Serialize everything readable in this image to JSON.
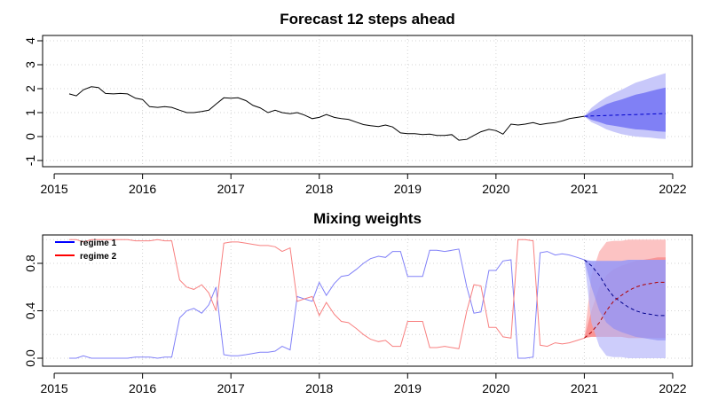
{
  "chart_data": [
    {
      "type": "line",
      "title": "Forecast 12 steps ahead",
      "xlabel": "",
      "ylabel": "",
      "xlim": [
        2015,
        2022
      ],
      "ylim": [
        -1,
        4
      ],
      "xticks": [
        "2015",
        "2016",
        "2017",
        "2018",
        "2019",
        "2020",
        "2021",
        "2022"
      ],
      "yticks": [
        "-1",
        "0",
        "1",
        "2",
        "3",
        "4"
      ],
      "grid": true,
      "colors": {
        "observed": "#000000",
        "forecast": "#0000cc",
        "inner_band": "#8080f5",
        "outer_band": "#c8c8fa"
      },
      "series": [
        {
          "kind": "observed",
          "x": [
            2015.17,
            2015.25,
            2015.33,
            2015.42,
            2015.5,
            2015.58,
            2015.67,
            2015.75,
            2015.83,
            2015.92,
            2016.0,
            2016.08,
            2016.17,
            2016.25,
            2016.33,
            2016.42,
            2016.5,
            2016.58,
            2016.67,
            2016.75,
            2016.83,
            2016.92,
            2017.0,
            2017.08,
            2017.17,
            2017.25,
            2017.33,
            2017.42,
            2017.5,
            2017.58,
            2017.67,
            2017.75,
            2017.83,
            2017.92,
            2018.0,
            2018.08,
            2018.17,
            2018.25,
            2018.33,
            2018.42,
            2018.5,
            2018.58,
            2018.67,
            2018.75,
            2018.83,
            2018.92,
            2019.0,
            2019.08,
            2019.17,
            2019.25,
            2019.33,
            2019.42,
            2019.5,
            2019.58,
            2019.67,
            2019.75,
            2019.83,
            2019.92,
            2020.0,
            2020.08,
            2020.17,
            2020.25,
            2020.33,
            2020.42,
            2020.5,
            2020.58,
            2020.67,
            2020.75,
            2020.83,
            2020.92,
            2021.0
          ],
          "values": [
            1.78,
            1.7,
            1.95,
            2.08,
            2.05,
            1.8,
            1.78,
            1.8,
            1.78,
            1.6,
            1.55,
            1.25,
            1.22,
            1.25,
            1.22,
            1.1,
            1.0,
            1.0,
            1.05,
            1.1,
            1.35,
            1.62,
            1.6,
            1.62,
            1.5,
            1.3,
            1.2,
            1.0,
            1.1,
            1.0,
            0.95,
            1.0,
            0.9,
            0.75,
            0.8,
            0.92,
            0.8,
            0.75,
            0.72,
            0.6,
            0.5,
            0.45,
            0.42,
            0.48,
            0.4,
            0.15,
            0.12,
            0.12,
            0.08,
            0.1,
            0.05,
            0.05,
            0.08,
            -0.15,
            -0.12,
            0.05,
            0.2,
            0.3,
            0.25,
            0.1,
            0.52,
            0.48,
            0.52,
            0.58,
            0.5,
            0.55,
            0.58,
            0.65,
            0.75,
            0.8,
            0.85
          ]
        },
        {
          "kind": "forecast",
          "x": [
            2021.0,
            2021.08,
            2021.17,
            2021.25,
            2021.33,
            2021.42,
            2021.5,
            2021.58,
            2021.67,
            2021.75,
            2021.83,
            2021.92
          ],
          "values": [
            0.85,
            0.86,
            0.87,
            0.88,
            0.89,
            0.9,
            0.91,
            0.92,
            0.93,
            0.94,
            0.95,
            0.96
          ],
          "inner_lower": [
            0.85,
            0.7,
            0.6,
            0.5,
            0.45,
            0.4,
            0.35,
            0.3,
            0.28,
            0.25,
            0.22,
            0.2
          ],
          "inner_upper": [
            0.85,
            1.05,
            1.2,
            1.35,
            1.45,
            1.55,
            1.65,
            1.75,
            1.82,
            1.9,
            1.97,
            2.05
          ],
          "outer_lower": [
            0.85,
            0.6,
            0.45,
            0.3,
            0.2,
            0.1,
            0.05,
            0.0,
            -0.03,
            -0.05,
            -0.08,
            -0.1
          ],
          "outer_upper": [
            0.85,
            1.2,
            1.45,
            1.65,
            1.8,
            1.95,
            2.1,
            2.25,
            2.35,
            2.45,
            2.55,
            2.65
          ]
        }
      ]
    },
    {
      "type": "line",
      "title": "Mixing weights",
      "xlabel": "",
      "ylabel": "",
      "xlim": [
        2015,
        2022
      ],
      "ylim": [
        0,
        1
      ],
      "xticks": [
        "2015",
        "2016",
        "2017",
        "2018",
        "2019",
        "2020",
        "2021",
        "2022"
      ],
      "yticks": [
        "0.0",
        "0.4",
        "0.8"
      ],
      "grid": true,
      "legend": "top-left",
      "colors": {
        "regime1": "#0000ff",
        "regime2": "#ff0000",
        "regime1_light": "#8080f8",
        "regime2_light": "#f88080"
      },
      "series": [
        {
          "name": "regime 1",
          "x": [
            2015.17,
            2015.25,
            2015.33,
            2015.42,
            2015.5,
            2015.58,
            2015.67,
            2015.75,
            2015.83,
            2015.92,
            2016.0,
            2016.08,
            2016.17,
            2016.25,
            2016.33,
            2016.42,
            2016.5,
            2016.58,
            2016.67,
            2016.75,
            2016.83,
            2016.92,
            2017.0,
            2017.08,
            2017.17,
            2017.25,
            2017.33,
            2017.42,
            2017.5,
            2017.58,
            2017.67,
            2017.75,
            2017.83,
            2017.92,
            2018.0,
            2018.08,
            2018.17,
            2018.25,
            2018.33,
            2018.42,
            2018.5,
            2018.58,
            2018.67,
            2018.75,
            2018.83,
            2018.92,
            2019.0,
            2019.08,
            2019.17,
            2019.25,
            2019.33,
            2019.42,
            2019.5,
            2019.58,
            2019.67,
            2019.75,
            2019.83,
            2019.92,
            2020.0,
            2020.08,
            2020.17,
            2020.25,
            2020.33,
            2020.42,
            2020.5,
            2020.58,
            2020.67,
            2020.75,
            2020.83,
            2020.92,
            2021.0
          ],
          "values": [
            0.0,
            0.0,
            0.02,
            0.0,
            0.0,
            0.0,
            0.0,
            0.0,
            0.0,
            0.01,
            0.01,
            0.01,
            0.0,
            0.01,
            0.01,
            0.34,
            0.4,
            0.42,
            0.38,
            0.45,
            0.6,
            0.03,
            0.02,
            0.02,
            0.03,
            0.04,
            0.05,
            0.05,
            0.06,
            0.1,
            0.07,
            0.52,
            0.5,
            0.48,
            0.64,
            0.53,
            0.63,
            0.69,
            0.7,
            0.75,
            0.8,
            0.84,
            0.86,
            0.85,
            0.9,
            0.9,
            0.69,
            0.69,
            0.69,
            0.91,
            0.91,
            0.9,
            0.91,
            0.92,
            0.6,
            0.38,
            0.39,
            0.74,
            0.74,
            0.82,
            0.83,
            0.0,
            0.0,
            0.01,
            0.89,
            0.9,
            0.87,
            0.88,
            0.87,
            0.85,
            0.83
          ],
          "forecast_x": [
            2021.0,
            2021.08,
            2021.17,
            2021.25,
            2021.33,
            2021.42,
            2021.5,
            2021.58,
            2021.67,
            2021.75,
            2021.83,
            2021.92
          ],
          "forecast_values": [
            0.83,
            0.78,
            0.7,
            0.6,
            0.52,
            0.47,
            0.43,
            0.4,
            0.38,
            0.37,
            0.36,
            0.36
          ],
          "band_inner_lower": [
            0.83,
            0.6,
            0.4,
            0.3,
            0.25,
            0.22,
            0.2,
            0.18,
            0.17,
            0.16,
            0.15,
            0.15
          ],
          "band_inner_upper": [
            0.83,
            0.82,
            0.82,
            0.82,
            0.82,
            0.82,
            0.83,
            0.83,
            0.83,
            0.83,
            0.83,
            0.83
          ],
          "band_outer_lower": [
            0.83,
            0.3,
            0.1,
            0.02,
            0.01,
            0.01,
            0.0,
            0.0,
            0.0,
            0.0,
            0.0,
            0.0
          ]
        },
        {
          "name": "regime 2",
          "x": [
            2015.17,
            2015.25,
            2015.33,
            2015.42,
            2015.5,
            2015.58,
            2015.67,
            2015.75,
            2015.83,
            2015.92,
            2016.0,
            2016.08,
            2016.17,
            2016.25,
            2016.33,
            2016.42,
            2016.5,
            2016.58,
            2016.67,
            2016.75,
            2016.83,
            2016.92,
            2017.0,
            2017.08,
            2017.17,
            2017.25,
            2017.33,
            2017.42,
            2017.5,
            2017.58,
            2017.67,
            2017.75,
            2017.83,
            2017.92,
            2018.0,
            2018.08,
            2018.17,
            2018.25,
            2018.33,
            2018.42,
            2018.5,
            2018.58,
            2018.67,
            2018.75,
            2018.83,
            2018.92,
            2019.0,
            2019.08,
            2019.17,
            2019.25,
            2019.33,
            2019.42,
            2019.5,
            2019.58,
            2019.67,
            2019.75,
            2019.83,
            2019.92,
            2020.0,
            2020.08,
            2020.17,
            2020.25,
            2020.33,
            2020.42,
            2020.5,
            2020.58,
            2020.67,
            2020.75,
            2020.83,
            2020.92,
            2021.0
          ],
          "values": [
            1.0,
            1.0,
            0.98,
            1.0,
            1.0,
            1.0,
            1.0,
            1.0,
            1.0,
            0.99,
            0.99,
            0.99,
            1.0,
            0.99,
            0.99,
            0.66,
            0.6,
            0.58,
            0.62,
            0.55,
            0.4,
            0.97,
            0.98,
            0.98,
            0.97,
            0.96,
            0.95,
            0.95,
            0.94,
            0.9,
            0.93,
            0.48,
            0.5,
            0.52,
            0.36,
            0.47,
            0.37,
            0.31,
            0.3,
            0.25,
            0.2,
            0.16,
            0.14,
            0.15,
            0.1,
            0.1,
            0.31,
            0.31,
            0.31,
            0.09,
            0.09,
            0.1,
            0.09,
            0.08,
            0.4,
            0.62,
            0.61,
            0.26,
            0.26,
            0.18,
            0.17,
            1.0,
            1.0,
            0.99,
            0.11,
            0.1,
            0.13,
            0.12,
            0.13,
            0.15,
            0.17
          ],
          "forecast_x": [
            2021.0,
            2021.08,
            2021.17,
            2021.25,
            2021.33,
            2021.42,
            2021.5,
            2021.58,
            2021.67,
            2021.75,
            2021.83,
            2021.92
          ],
          "forecast_values": [
            0.17,
            0.22,
            0.3,
            0.4,
            0.48,
            0.53,
            0.57,
            0.6,
            0.62,
            0.63,
            0.64,
            0.64
          ],
          "band_inner_lower": [
            0.17,
            0.18,
            0.18,
            0.18,
            0.18,
            0.18,
            0.17,
            0.17,
            0.17,
            0.17,
            0.17,
            0.17
          ],
          "band_inner_upper": [
            0.17,
            0.4,
            0.6,
            0.7,
            0.75,
            0.78,
            0.8,
            0.82,
            0.83,
            0.84,
            0.85,
            0.85
          ],
          "band_outer_upper": [
            0.17,
            0.7,
            0.9,
            0.98,
            0.99,
            0.99,
            1.0,
            1.0,
            1.0,
            1.0,
            1.0,
            1.0
          ]
        }
      ]
    }
  ]
}
